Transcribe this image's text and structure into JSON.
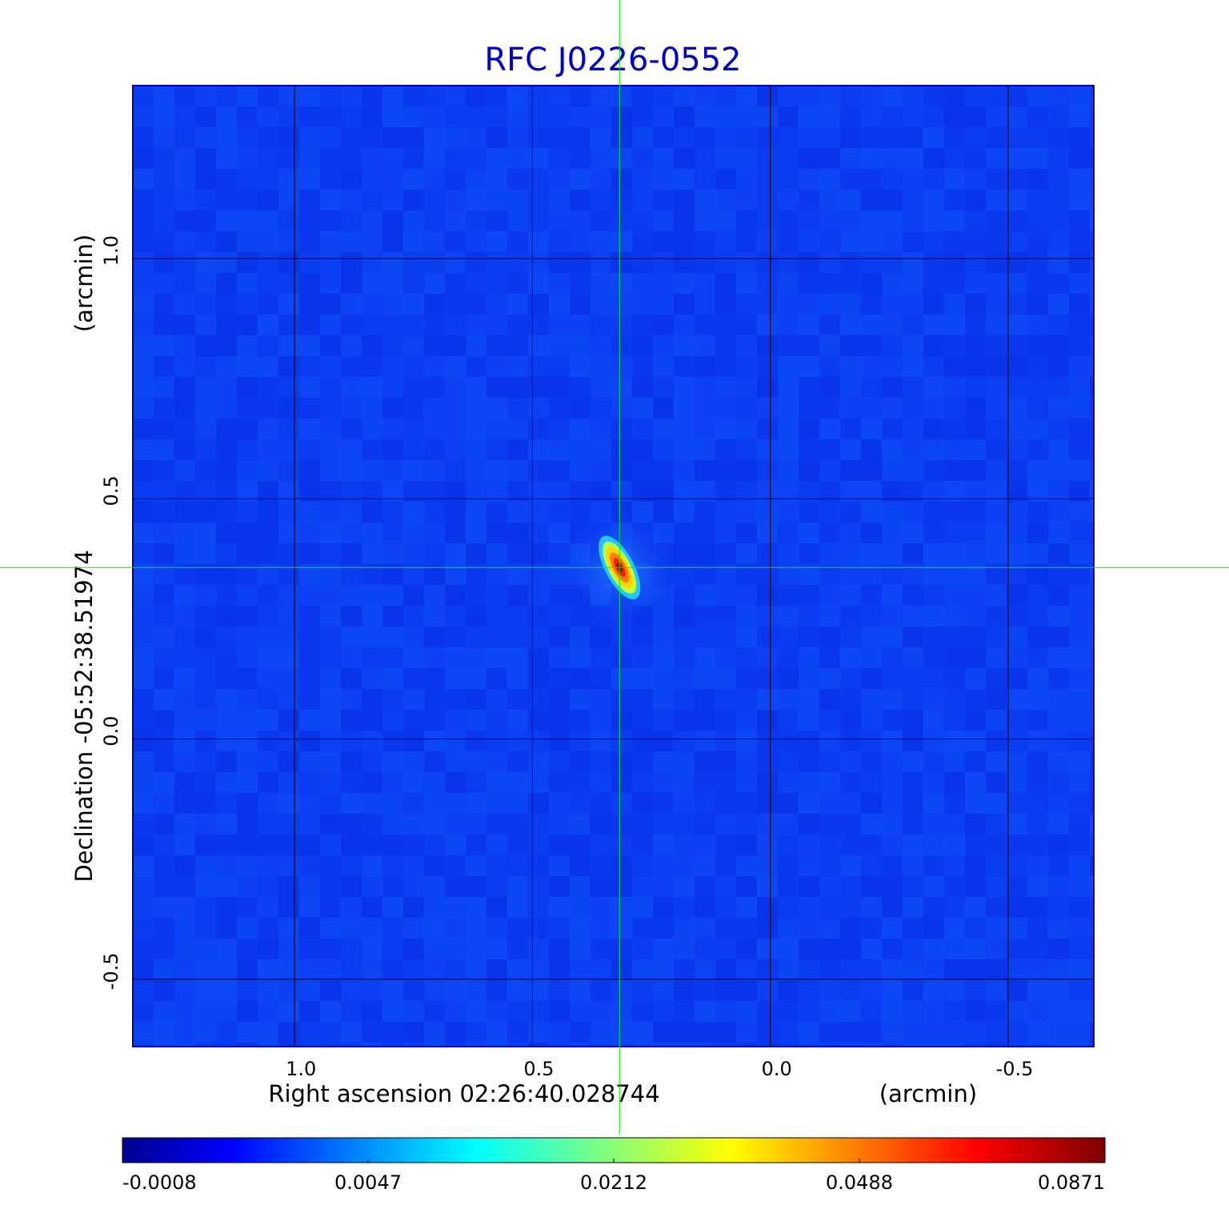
{
  "chart_data": {
    "type": "heatmap",
    "title": "RFC J0226-0552",
    "xlabel": "Right ascension  02:26:40.028744",
    "x_unit": "(arcmin)",
    "ylabel": "Declination  -05:52:38.51974",
    "y_unit": "(arcmin)",
    "x_ticks": [
      "1.0",
      "0.5",
      "0.0",
      "-0.5"
    ],
    "y_ticks": [
      "1.0",
      "0.5",
      "0.0",
      "-0.5"
    ],
    "xlim": [
      1.34,
      -0.68
    ],
    "ylim": [
      -0.64,
      1.36
    ],
    "x_tick_values": [
      1.0,
      0.5,
      0.0,
      -0.5
    ],
    "y_tick_values": [
      1.0,
      0.5,
      0.0,
      -0.5
    ],
    "grid": true,
    "crosshair": {
      "x": 0.317,
      "y": 0.357,
      "color": "#00ee00"
    },
    "source_peak": {
      "x": 0.317,
      "y": 0.357,
      "value": 0.0871
    },
    "colormap": "jet",
    "colorbar": {
      "orientation": "horizontal",
      "position": "bottom",
      "ticks": [
        "-0.0008",
        "0.0047",
        "0.0212",
        "0.0488",
        "0.0871"
      ]
    }
  }
}
